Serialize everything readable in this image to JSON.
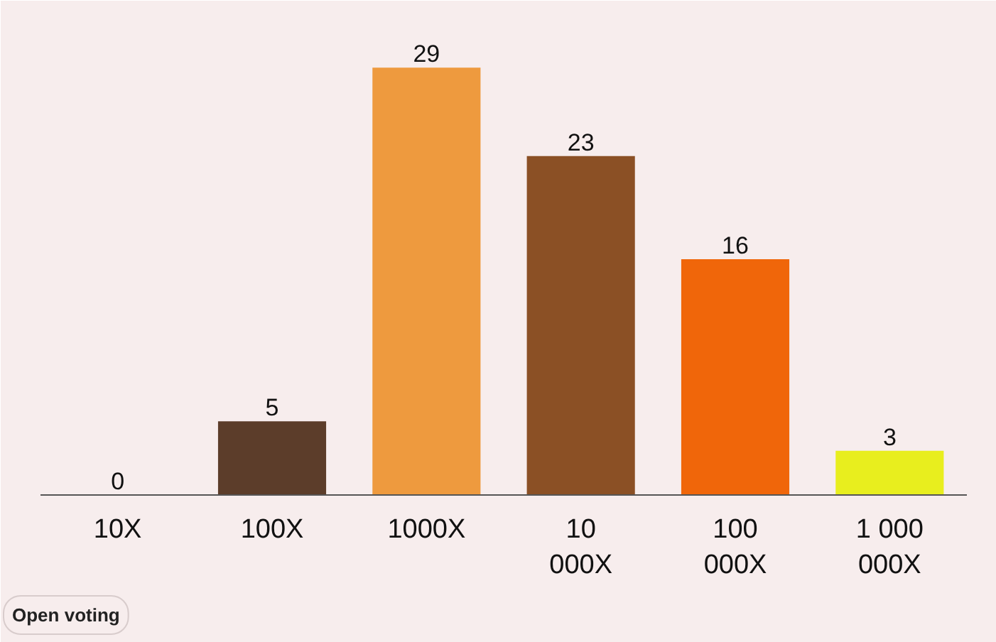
{
  "chart_data": {
    "type": "bar",
    "categories": [
      "10X",
      "100X",
      "1000X",
      "10 000X",
      "100 000X",
      "1 000 000X"
    ],
    "values": [
      0,
      5,
      29,
      23,
      16,
      3
    ],
    "colors": [
      "#5c3d2a",
      "#5c3d2a",
      "#ee9a3e",
      "#8b5025",
      "#f0660a",
      "#e8ee1e"
    ],
    "data_labels": true,
    "annotations": [
      "Open voting"
    ]
  }
}
